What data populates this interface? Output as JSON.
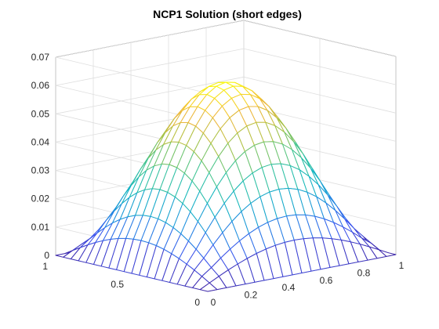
{
  "chart_data": {
    "type": "surface-mesh",
    "title": "NCP1 Solution (short edges)",
    "xlabel": "",
    "ylabel": "",
    "zlabel": "",
    "x_ticks": [
      "0",
      "0.2",
      "0.4",
      "0.6",
      "0.8",
      "1"
    ],
    "y_ticks": [
      "0",
      "0.5",
      "1"
    ],
    "z_ticks": [
      "0",
      "0.01",
      "0.02",
      "0.03",
      "0.04",
      "0.05",
      "0.06",
      "0.07"
    ],
    "xlim": [
      0,
      1
    ],
    "ylim": [
      0,
      1
    ],
    "zlim": [
      0,
      0.07
    ],
    "grid": true,
    "colormap": "parula",
    "colormap_stops": [
      "#3e26a8",
      "#3d56f0",
      "#1d8fe0",
      "#13b8be",
      "#47c68f",
      "#a7c345",
      "#f2b73b",
      "#f9fb0e"
    ],
    "grid_size": 21,
    "peak_value": 0.061,
    "peak_location": [
      0.5,
      0.5
    ],
    "boundary_value": 0,
    "description_of_shape": "dome"
  }
}
